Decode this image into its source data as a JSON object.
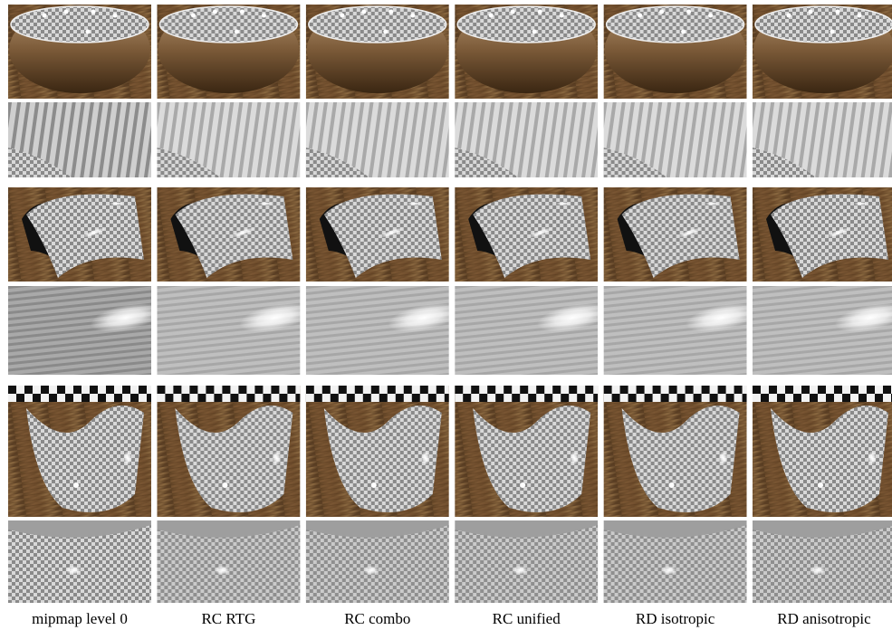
{
  "columns": [
    "mipmap level 0",
    "RC RTG",
    "RC combo",
    "RC unified",
    "RD isotropic",
    "RD anisotropic"
  ]
}
